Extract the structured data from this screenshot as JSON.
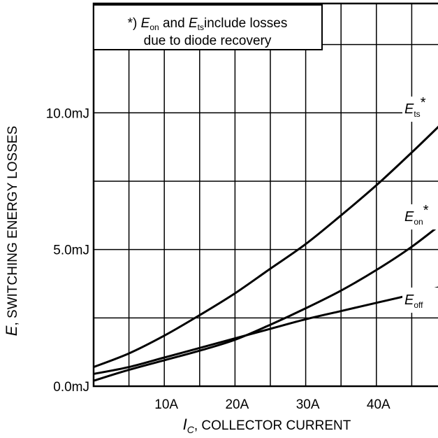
{
  "chart_data": {
    "type": "line",
    "annotation": {
      "prefix": "*) ",
      "e1": "E",
      "e1_sub": "on",
      "mid": " and ",
      "e2": "E",
      "e2_sub": "ts",
      "tail": "include losses",
      "line2": "due to diode recovery"
    },
    "xlabel": {
      "sym": "I",
      "sub": "C",
      "text": ", COLLECTOR CURRENT"
    },
    "ylabel": {
      "sym": "E",
      "text": ", SWITCHING ENERGY LOSSES"
    },
    "xlim": [
      0,
      50
    ],
    "ylim": [
      0,
      14
    ],
    "x_ticks": [
      {
        "v": 10,
        "label": "10A"
      },
      {
        "v": 20,
        "label": "20A"
      },
      {
        "v": 30,
        "label": "30A"
      },
      {
        "v": 40,
        "label": "40A"
      }
    ],
    "y_ticks": [
      {
        "v": 0,
        "label": "0.0mJ"
      },
      {
        "v": 5,
        "label": "5.0mJ"
      },
      {
        "v": 10,
        "label": "10.0mJ"
      }
    ],
    "grid": true,
    "grid_x": [
      5,
      10,
      15,
      20,
      25,
      30,
      35,
      40,
      45
    ],
    "grid_y": [
      2.5,
      5,
      7.5,
      10,
      12.5
    ],
    "series": [
      {
        "name": "E",
        "name_sub": "ts",
        "name_suffix": "*",
        "x": [
          0,
          5,
          10,
          15,
          20,
          25,
          30,
          35,
          40,
          45,
          50
        ],
        "y": [
          0.7,
          1.2,
          1.85,
          2.6,
          3.4,
          4.3,
          5.2,
          6.25,
          7.35,
          8.55,
          9.8
        ]
      },
      {
        "name": "E",
        "name_sub": "on",
        "name_suffix": "*",
        "x": [
          0,
          5,
          10,
          15,
          20,
          25,
          30,
          35,
          40,
          45,
          50
        ],
        "y": [
          0.2,
          0.6,
          0.95,
          1.3,
          1.7,
          2.25,
          2.85,
          3.5,
          4.25,
          5.1,
          6.1
        ]
      },
      {
        "name": "E",
        "name_sub": "off",
        "name_suffix": "",
        "x": [
          0,
          5,
          10,
          15,
          20,
          25,
          30,
          35,
          40,
          45,
          50
        ],
        "y": [
          0.45,
          0.7,
          1.05,
          1.4,
          1.75,
          2.1,
          2.45,
          2.75,
          3.05,
          3.35,
          3.7
        ]
      }
    ]
  }
}
